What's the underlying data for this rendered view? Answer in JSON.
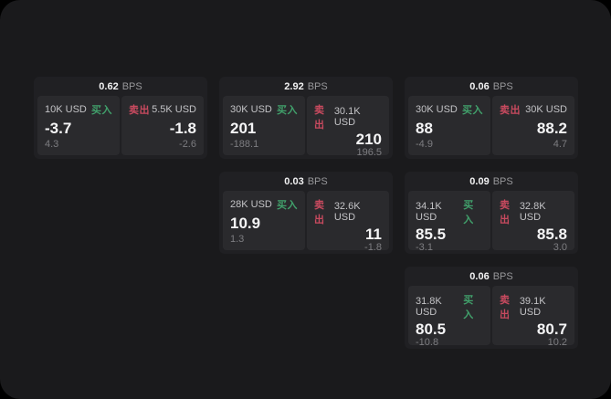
{
  "labels": {
    "bps": "BPS",
    "buy": "买入",
    "sell": "卖出"
  },
  "colors": {
    "page_bg": "#1a1a1c",
    "card_bg": "#202023",
    "panel_bg": "#2a2a2d",
    "buy_green": "#41a06b",
    "sell_red": "#c84a5f"
  },
  "cards": [
    {
      "bps": "0.62",
      "buy": {
        "amount": "10K USD",
        "price": "-3.7",
        "delta": "4.3"
      },
      "sell": {
        "amount": "5.5K USD",
        "price": "-1.8",
        "delta": "-2.6"
      }
    },
    {
      "bps": "2.92",
      "buy": {
        "amount": "30K USD",
        "price": "201",
        "delta": "-188.1"
      },
      "sell": {
        "amount": "30.1K USD",
        "price": "210",
        "delta": "196.5"
      }
    },
    {
      "bps": "0.06",
      "buy": {
        "amount": "30K USD",
        "price": "88",
        "delta": "-4.9"
      },
      "sell": {
        "amount": "30K USD",
        "price": "88.2",
        "delta": "4.7"
      }
    },
    {
      "bps": "0.03",
      "buy": {
        "amount": "28K USD",
        "price": "10.9",
        "delta": "1.3"
      },
      "sell": {
        "amount": "32.6K USD",
        "price": "11",
        "delta": "-1.8"
      }
    },
    {
      "bps": "0.09",
      "buy": {
        "amount": "34.1K USD",
        "price": "85.5",
        "delta": "-3.1"
      },
      "sell": {
        "amount": "32.8K USD",
        "price": "85.8",
        "delta": "3.0"
      }
    },
    {
      "bps": "0.06",
      "buy": {
        "amount": "31.8K USD",
        "price": "80.5",
        "delta": "-10.8"
      },
      "sell": {
        "amount": "39.1K USD",
        "price": "80.7",
        "delta": "10.2"
      }
    }
  ]
}
